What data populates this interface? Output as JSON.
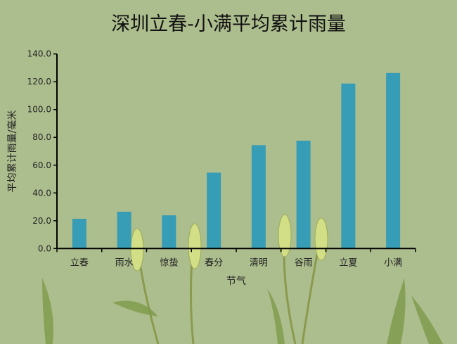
{
  "chart_data": {
    "type": "bar",
    "title": "深圳立春-小满平均累计雨量",
    "xlabel": "节气",
    "ylabel": "平均累计雨量/毫米",
    "categories": [
      "立春",
      "雨水",
      "惊蛰",
      "春分",
      "清明",
      "谷雨",
      "立夏",
      "小满"
    ],
    "values": [
      21.4,
      26.5,
      23.9,
      54.6,
      74.4,
      77.6,
      118.7,
      126.3
    ],
    "ylim": [
      0,
      140
    ],
    "yticks": [
      "0.0",
      "20.0",
      "40.0",
      "60.0",
      "80.0",
      "100.0",
      "120.0",
      "140.0"
    ],
    "grid": false,
    "colors": {
      "bar": "#379cb5",
      "background": "#adbe8e"
    }
  }
}
